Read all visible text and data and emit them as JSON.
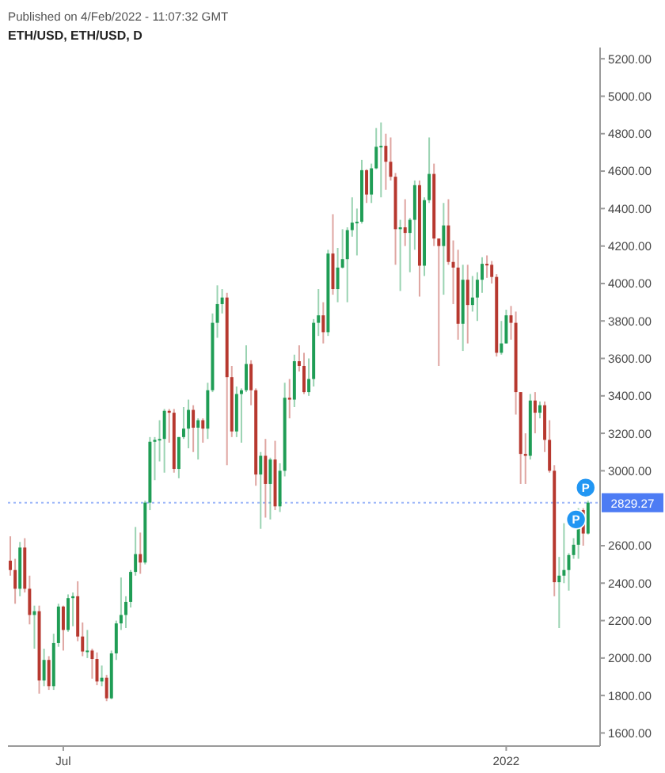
{
  "chart_data": {
    "type": "candlestick",
    "title": "ETH/USD, ETH/USD, D",
    "annotations": [
      "Published on 4/Feb/2022 - 11:07:32 GMT",
      {
        "text": "P",
        "x": "2022-01-30",
        "y": 2740
      },
      {
        "text": "P",
        "x": "2022-02-03",
        "y": 2910
      }
    ],
    "x": [
      "2021-06-09",
      "2021-06-11",
      "2021-06-13",
      "2021-06-15",
      "2021-06-17",
      "2021-06-19",
      "2021-06-21",
      "2021-06-23",
      "2021-06-25",
      "2021-06-27",
      "2021-06-29",
      "2021-07-01",
      "2021-07-03",
      "2021-07-05",
      "2021-07-07",
      "2021-07-09",
      "2021-07-11",
      "2021-07-13",
      "2021-07-15",
      "2021-07-17",
      "2021-07-19",
      "2021-07-21",
      "2021-07-23",
      "2021-07-25",
      "2021-07-27",
      "2021-07-29",
      "2021-07-31",
      "2021-08-02",
      "2021-08-04",
      "2021-08-06",
      "2021-08-08",
      "2021-08-10",
      "2021-08-12",
      "2021-08-14",
      "2021-08-16",
      "2021-08-18",
      "2021-08-20",
      "2021-08-22",
      "2021-08-24",
      "2021-08-26",
      "2021-08-28",
      "2021-08-30",
      "2021-09-01",
      "2021-09-03",
      "2021-09-05",
      "2021-09-07",
      "2021-09-09",
      "2021-09-11",
      "2021-09-13",
      "2021-09-15",
      "2021-09-17",
      "2021-09-19",
      "2021-09-21",
      "2021-09-23",
      "2021-09-25",
      "2021-09-27",
      "2021-09-29",
      "2021-10-01",
      "2021-10-03",
      "2021-10-05",
      "2021-10-07",
      "2021-10-09",
      "2021-10-11",
      "2021-10-13",
      "2021-10-15",
      "2021-10-17",
      "2021-10-19",
      "2021-10-21",
      "2021-10-23",
      "2021-10-25",
      "2021-10-27",
      "2021-10-29",
      "2021-10-31",
      "2021-11-02",
      "2021-11-04",
      "2021-11-06",
      "2021-11-08",
      "2021-11-10",
      "2021-11-12",
      "2021-11-14",
      "2021-11-16",
      "2021-11-18",
      "2021-11-20",
      "2021-11-22",
      "2021-11-24",
      "2021-11-26",
      "2021-11-28",
      "2021-11-30",
      "2021-12-02",
      "2021-12-04",
      "2021-12-06",
      "2021-12-08",
      "2021-12-10",
      "2021-12-12",
      "2021-12-14",
      "2021-12-16",
      "2021-12-18",
      "2021-12-20",
      "2021-12-22",
      "2021-12-24",
      "2021-12-26",
      "2021-12-28",
      "2021-12-30",
      "2022-01-01",
      "2022-01-03",
      "2022-01-05",
      "2022-01-07",
      "2022-01-09",
      "2022-01-11",
      "2022-01-13",
      "2022-01-15",
      "2022-01-17",
      "2022-01-19",
      "2022-01-21",
      "2022-01-23",
      "2022-01-25",
      "2022-01-27",
      "2022-01-29",
      "2022-01-31",
      "2022-02-02",
      "2022-02-04"
    ],
    "ohlc": [
      [
        2520,
        2650,
        2440,
        2470
      ],
      [
        2470,
        2530,
        2290,
        2370
      ],
      [
        2370,
        2620,
        2330,
        2590
      ],
      [
        2590,
        2640,
        2350,
        2370
      ],
      [
        2370,
        2440,
        2180,
        2230
      ],
      [
        2230,
        2280,
        2050,
        2250
      ],
      [
        2250,
        2280,
        1810,
        1880
      ],
      [
        1880,
        2050,
        1850,
        1990
      ],
      [
        1990,
        2010,
        1830,
        1850
      ],
      [
        1850,
        2130,
        1830,
        2080
      ],
      [
        2080,
        2290,
        2060,
        2275
      ],
      [
        2275,
        2280,
        2040,
        2150
      ],
      [
        2150,
        2340,
        2140,
        2320
      ],
      [
        2320,
        2350,
        2170,
        2330
      ],
      [
        2330,
        2410,
        2090,
        2115
      ],
      [
        2115,
        2190,
        2010,
        2035
      ],
      [
        2035,
        2150,
        2000,
        2040
      ],
      [
        2040,
        2050,
        1890,
        1995
      ],
      [
        1995,
        2030,
        1855,
        1875
      ],
      [
        1875,
        1960,
        1850,
        1895
      ],
      [
        1895,
        1910,
        1770,
        1785
      ],
      [
        1785,
        2040,
        1780,
        2025
      ],
      [
        2025,
        2200,
        1990,
        2185
      ],
      [
        2185,
        2430,
        2150,
        2230
      ],
      [
        2230,
        2330,
        2160,
        2300
      ],
      [
        2300,
        2470,
        2270,
        2460
      ],
      [
        2460,
        2700,
        2440,
        2555
      ],
      [
        2555,
        2670,
        2450,
        2510
      ],
      [
        2510,
        2840,
        2500,
        2830
      ],
      [
        2830,
        3180,
        2790,
        3155
      ],
      [
        3155,
        3180,
        2950,
        3165
      ],
      [
        3165,
        3270,
        3050,
        3170
      ],
      [
        3170,
        3330,
        2990,
        3320
      ],
      [
        3320,
        3330,
        3150,
        3310
      ],
      [
        3310,
        3330,
        2990,
        3010
      ],
      [
        3010,
        3180,
        2960,
        3180
      ],
      [
        3180,
        3340,
        3170,
        3225
      ],
      [
        3225,
        3380,
        3120,
        3325
      ],
      [
        3325,
        3350,
        3100,
        3230
      ],
      [
        3230,
        3280,
        3060,
        3270
      ],
      [
        3270,
        3280,
        3150,
        3225
      ],
      [
        3225,
        3470,
        3170,
        3430
      ],
      [
        3430,
        3840,
        3420,
        3790
      ],
      [
        3790,
        3990,
        3710,
        3890
      ],
      [
        3890,
        3970,
        3840,
        3925
      ],
      [
        3925,
        3950,
        3030,
        3500
      ],
      [
        3500,
        3560,
        3180,
        3210
      ],
      [
        3210,
        3450,
        3180,
        3410
      ],
      [
        3410,
        3440,
        3150,
        3430
      ],
      [
        3430,
        3670,
        3420,
        3570
      ],
      [
        3570,
        3590,
        3350,
        3430
      ],
      [
        3430,
        3440,
        2920,
        2980
      ],
      [
        2980,
        3100,
        2690,
        3080
      ],
      [
        3080,
        3170,
        2750,
        2930
      ],
      [
        2930,
        3070,
        2740,
        3060
      ],
      [
        3060,
        3160,
        2790,
        2810
      ],
      [
        2810,
        3040,
        2780,
        3000
      ],
      [
        3000,
        3470,
        2970,
        3390
      ],
      [
        3390,
        3490,
        3280,
        3380
      ],
      [
        3380,
        3620,
        3340,
        3585
      ],
      [
        3585,
        3670,
        3530,
        3560
      ],
      [
        3560,
        3630,
        3410,
        3420
      ],
      [
        3420,
        3600,
        3400,
        3490
      ],
      [
        3490,
        3810,
        3450,
        3790
      ],
      [
        3790,
        3970,
        3720,
        3830
      ],
      [
        3830,
        3900,
        3680,
        3740
      ],
      [
        3740,
        4180,
        3720,
        4160
      ],
      [
        4160,
        4370,
        3940,
        3970
      ],
      [
        3970,
        4190,
        3900,
        4085
      ],
      [
        4085,
        4290,
        4080,
        4130
      ],
      [
        4130,
        4300,
        3900,
        4285
      ],
      [
        4285,
        4460,
        4250,
        4325
      ],
      [
        4325,
        4400,
        4150,
        4330
      ],
      [
        4330,
        4660,
        4320,
        4605
      ],
      [
        4605,
        4610,
        4430,
        4475
      ],
      [
        4475,
        4640,
        4430,
        4615
      ],
      [
        4615,
        4830,
        4610,
        4730
      ],
      [
        4730,
        4860,
        4460,
        4735
      ],
      [
        4735,
        4800,
        4500,
        4650
      ],
      [
        4650,
        4780,
        4550,
        4570
      ],
      [
        4570,
        4590,
        4100,
        4290
      ],
      [
        4290,
        4340,
        3960,
        4300
      ],
      [
        4300,
        4450,
        4200,
        4270
      ],
      [
        4270,
        4350,
        4060,
        4340
      ],
      [
        4340,
        4550,
        4180,
        4525
      ],
      [
        4525,
        4550,
        3930,
        4095
      ],
      [
        4095,
        4460,
        4040,
        4445
      ],
      [
        4445,
        4780,
        4430,
        4585
      ],
      [
        4585,
        4640,
        4200,
        4240
      ],
      [
        4240,
        4240,
        3560,
        4200
      ],
      [
        4200,
        4430,
        3940,
        4310
      ],
      [
        4310,
        4450,
        4100,
        4115
      ],
      [
        4115,
        4230,
        3890,
        4085
      ],
      [
        4085,
        4180,
        3700,
        3785
      ],
      [
        3785,
        4100,
        3640,
        4020
      ],
      [
        4020,
        4100,
        3680,
        3885
      ],
      [
        3885,
        4040,
        3850,
        3925
      ],
      [
        3925,
        4060,
        3800,
        4020
      ],
      [
        4020,
        4140,
        3950,
        4105
      ],
      [
        4105,
        4150,
        4030,
        4100
      ],
      [
        4100,
        4120,
        4000,
        4035
      ],
      [
        4035,
        4050,
        3610,
        3630
      ],
      [
        3630,
        3800,
        3620,
        3680
      ],
      [
        3680,
        3860,
        3680,
        3830
      ],
      [
        3830,
        3880,
        3700,
        3790
      ],
      [
        3790,
        3850,
        3300,
        3420
      ],
      [
        3420,
        3420,
        2930,
        3090
      ],
      [
        3090,
        3200,
        2930,
        3080
      ],
      [
        3080,
        3410,
        3060,
        3375
      ],
      [
        3375,
        3420,
        3200,
        3310
      ],
      [
        3310,
        3370,
        3280,
        3350
      ],
      [
        3350,
        3370,
        3100,
        3165
      ],
      [
        3165,
        3270,
        2990,
        3000
      ],
      [
        3000,
        3030,
        2330,
        2405
      ],
      [
        2405,
        2540,
        2160,
        2440
      ],
      [
        2440,
        2720,
        2400,
        2470
      ],
      [
        2470,
        2560,
        2360,
        2550
      ],
      [
        2550,
        2640,
        2530,
        2605
      ],
      [
        2605,
        2800,
        2530,
        2790
      ],
      [
        2790,
        2800,
        2600,
        2665
      ],
      [
        2665,
        2840,
        2660,
        2830
      ]
    ],
    "colors": [
      "#b7382f",
      "#b7382f",
      "#1f9d55",
      "#b7382f",
      "#b7382f",
      "#1f9d55",
      "#b7382f",
      "#1f9d55",
      "#b7382f",
      "#1f9d55",
      "#1f9d55",
      "#b7382f",
      "#1f9d55",
      "#1f9d55",
      "#b7382f",
      "#b7382f",
      "#1f9d55",
      "#b7382f",
      "#b7382f",
      "#1f9d55",
      "#b7382f",
      "#1f9d55",
      "#1f9d55",
      "#1f9d55",
      "#1f9d55",
      "#1f9d55",
      "#1f9d55",
      "#b7382f",
      "#1f9d55",
      "#1f9d55",
      "#1f9d55",
      "#1f9d55",
      "#1f9d55",
      "#b7382f",
      "#b7382f",
      "#1f9d55",
      "#1f9d55",
      "#1f9d55",
      "#b7382f",
      "#1f9d55",
      "#b7382f",
      "#1f9d55",
      "#1f9d55",
      "#1f9d55",
      "#1f9d55",
      "#b7382f",
      "#b7382f",
      "#1f9d55",
      "#1f9d55",
      "#1f9d55",
      "#b7382f",
      "#b7382f",
      "#1f9d55",
      "#b7382f",
      "#1f9d55",
      "#b7382f",
      "#1f9d55",
      "#1f9d55",
      "#b7382f",
      "#1f9d55",
      "#b7382f",
      "#b7382f",
      "#1f9d55",
      "#1f9d55",
      "#1f9d55",
      "#b7382f",
      "#1f9d55",
      "#b7382f",
      "#1f9d55",
      "#1f9d55",
      "#1f9d55",
      "#1f9d55",
      "#1f9d55",
      "#1f9d55",
      "#b7382f",
      "#1f9d55",
      "#1f9d55",
      "#1f9d55",
      "#b7382f",
      "#b7382f",
      "#b7382f",
      "#1f9d55",
      "#b7382f",
      "#1f9d55",
      "#1f9d55",
      "#b7382f",
      "#1f9d55",
      "#1f9d55",
      "#b7382f",
      "#b7382f",
      "#1f9d55",
      "#b7382f",
      "#b7382f",
      "#b7382f",
      "#1f9d55",
      "#b7382f",
      "#1f9d55",
      "#1f9d55",
      "#1f9d55",
      "#b7382f",
      "#b7382f",
      "#b7382f",
      "#1f9d55",
      "#1f9d55",
      "#b7382f",
      "#b7382f",
      "#b7382f",
      "#b7382f",
      "#1f9d55",
      "#b7382f",
      "#1f9d55",
      "#b7382f",
      "#b7382f",
      "#b7382f",
      "#1f9d55",
      "#1f9d55",
      "#1f9d55",
      "#1f9d55",
      "#1f9d55",
      "#b7382f",
      "#1f9d55"
    ],
    "xlim": [
      "2021-06-08",
      "2022-02-09"
    ],
    "xticks": [
      {
        "value": "2021-07-01",
        "label": "Jul"
      },
      {
        "value": "2022-01-01",
        "label": "2022"
      }
    ],
    "ylim": [
      1530,
      5260
    ],
    "yticks": [
      {
        "value": 1600,
        "label": "1600.00"
      },
      {
        "value": 1800,
        "label": "1800.00"
      },
      {
        "value": 2000,
        "label": "2000.00"
      },
      {
        "value": 2200,
        "label": "2200.00"
      },
      {
        "value": 2400,
        "label": "2400.00"
      },
      {
        "value": 2600,
        "label": "2600.00"
      },
      {
        "value": 3000,
        "label": "3000.00"
      },
      {
        "value": 3200,
        "label": "3200.00"
      },
      {
        "value": 3400,
        "label": "3400.00"
      },
      {
        "value": 3600,
        "label": "3600.00"
      },
      {
        "value": 3800,
        "label": "3800.00"
      },
      {
        "value": 4000,
        "label": "4000.00"
      },
      {
        "value": 4200,
        "label": "4200.00"
      },
      {
        "value": 4400,
        "label": "4400.00"
      },
      {
        "value": 4600,
        "label": "4600.00"
      },
      {
        "value": 4800,
        "label": "4800.00"
      },
      {
        "value": 5000,
        "label": "5000.00"
      },
      {
        "value": 5200,
        "label": "5200.00"
      }
    ],
    "ref_lines": [
      {
        "axis": "y",
        "value": 2829.27,
        "label": "2829.27",
        "color": "#4d7cf4",
        "line_style": "dotted"
      }
    ]
  }
}
